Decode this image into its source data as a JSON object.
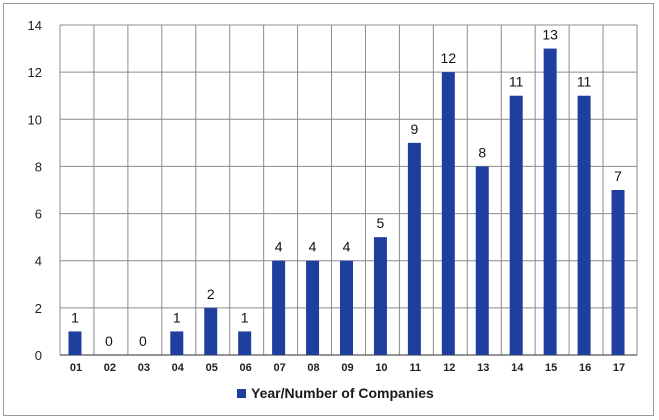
{
  "chart_data": {
    "type": "bar",
    "categories": [
      "01",
      "02",
      "03",
      "04",
      "05",
      "06",
      "07",
      "08",
      "09",
      "10",
      "11",
      "12",
      "13",
      "14",
      "15",
      "16",
      "17"
    ],
    "series": [
      {
        "name": "Year/Number of Companies",
        "values": [
          1,
          0,
          0,
          1,
          2,
          1,
          4,
          4,
          4,
          5,
          9,
          12,
          8,
          11,
          13,
          11,
          7
        ],
        "color": "#1f3f9e"
      }
    ],
    "ylim": [
      0,
      14
    ],
    "yticks": [
      0,
      2,
      4,
      6,
      8,
      10,
      12,
      14
    ],
    "grid": true,
    "legend": "bottom",
    "data_labels": true
  }
}
